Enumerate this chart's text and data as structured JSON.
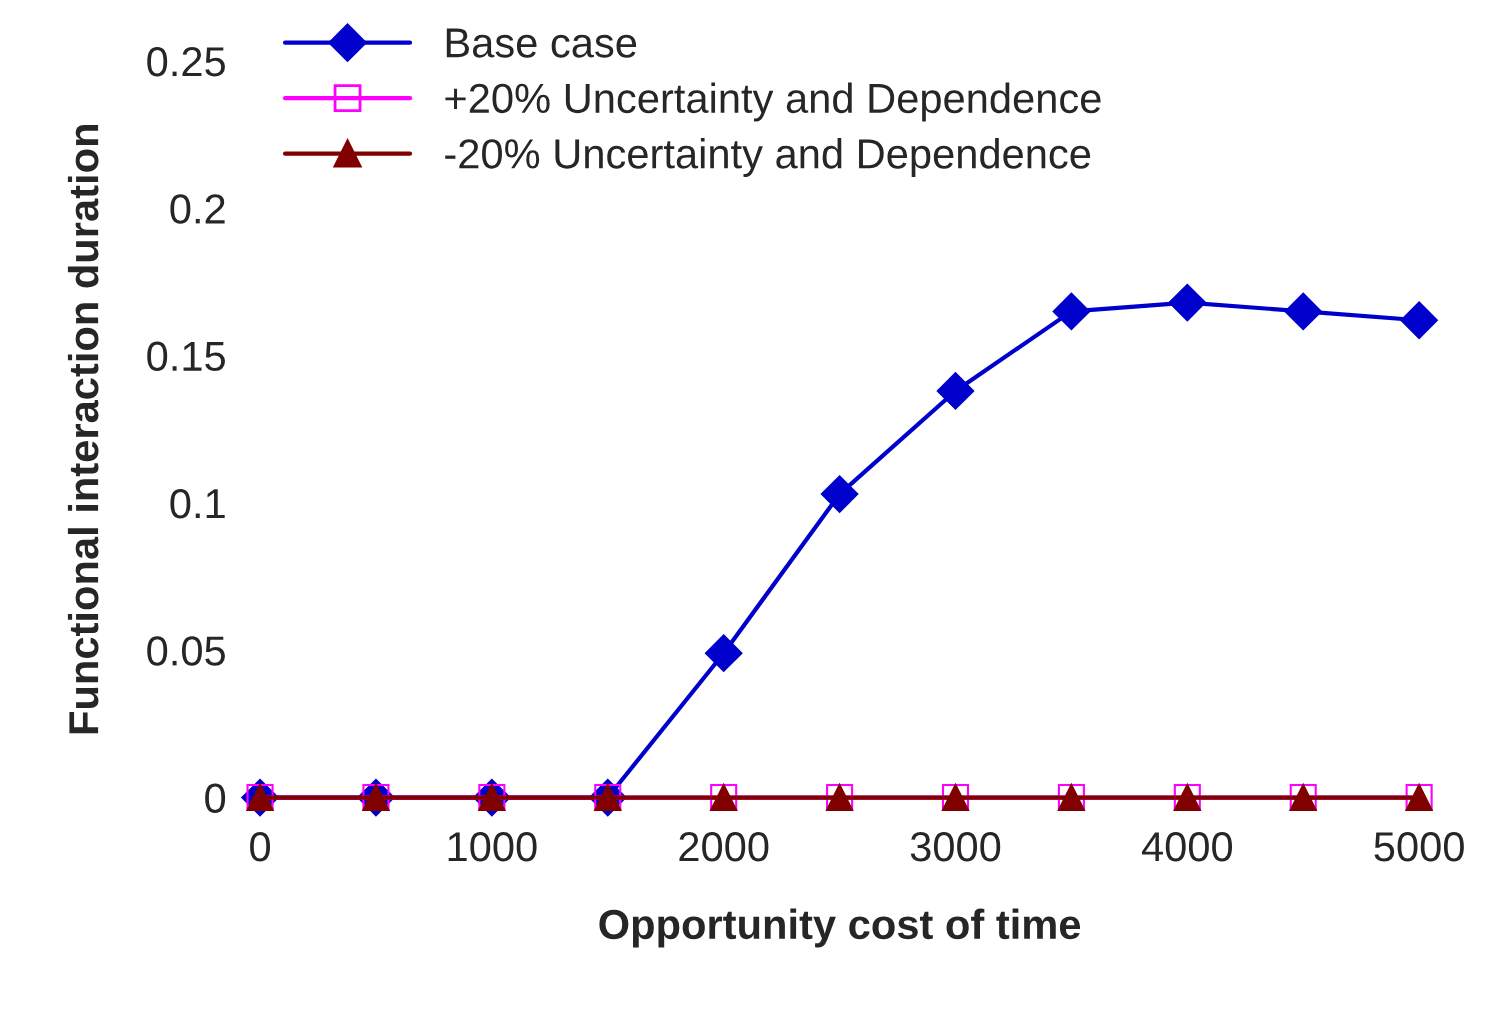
{
  "chart_data": {
    "type": "line",
    "xlabel": "Opportunity cost of time",
    "ylabel": "Functional interaction duration",
    "x": [
      0,
      500,
      1000,
      1500,
      2000,
      2500,
      3000,
      3500,
      4000,
      4500,
      5000
    ],
    "series": [
      {
        "name": "Base case",
        "color": "#0000cc",
        "marker": "diamond",
        "values": [
          0,
          0,
          0,
          0,
          0.049,
          0.103,
          0.138,
          0.165,
          0.168,
          0.165,
          0.162
        ]
      },
      {
        "name": "+20% Uncertainty and Dependence",
        "color": "#ff00ff",
        "marker": "square",
        "values": [
          0,
          0,
          0,
          0,
          0,
          0,
          0,
          0,
          0,
          0,
          0
        ]
      },
      {
        "name": "-20% Uncertainty and Dependence",
        "color": "#800000",
        "marker": "triangle",
        "values": [
          0,
          0,
          0,
          0,
          0,
          0,
          0,
          0,
          0,
          0,
          0
        ]
      }
    ],
    "xlim": [
      0,
      5000
    ],
    "xticks": [
      0,
      1000,
      2000,
      3000,
      4000,
      5000
    ],
    "ylim": [
      0,
      0.25
    ],
    "yticks": [
      0,
      0.05,
      0.1,
      0.15,
      0.2,
      0.25
    ],
    "grid": false,
    "legend": "top left",
    "line_style": "solid"
  }
}
